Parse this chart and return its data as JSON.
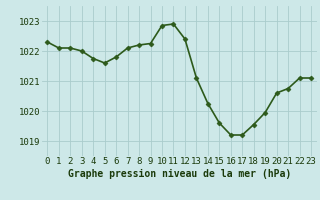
{
  "x": [
    0,
    1,
    2,
    3,
    4,
    5,
    6,
    7,
    8,
    9,
    10,
    11,
    12,
    13,
    14,
    15,
    16,
    17,
    18,
    19,
    20,
    21,
    22,
    23
  ],
  "y": [
    1022.3,
    1022.1,
    1022.1,
    1022.0,
    1021.75,
    1021.6,
    1021.8,
    1022.1,
    1022.2,
    1022.25,
    1022.85,
    1022.9,
    1022.4,
    1021.1,
    1020.25,
    1019.6,
    1019.2,
    1019.2,
    1019.55,
    1019.95,
    1020.6,
    1020.75,
    1021.1,
    1021.1
  ],
  "line_color": "#2d5a1b",
  "marker": "D",
  "marker_size": 2.5,
  "bg_color": "#cde8e8",
  "grid_color": "#aacccc",
  "xlabel": "Graphe pression niveau de la mer (hPa)",
  "xlabel_color": "#1a3a0a",
  "xlabel_fontsize": 7,
  "ylabel_ticks": [
    1019,
    1020,
    1021,
    1022,
    1023
  ],
  "ylim": [
    1018.5,
    1023.5
  ],
  "xlim": [
    -0.5,
    23.5
  ],
  "tick_fontsize": 6.5,
  "tick_color": "#1a3a0a",
  "linewidth": 1.2
}
